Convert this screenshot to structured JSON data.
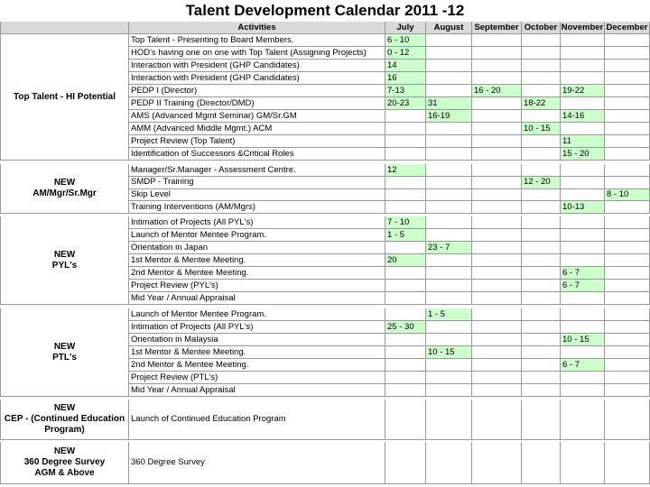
{
  "header": {
    "title": "Talent Development Calendar 2011 -12"
  },
  "table": {
    "columns": [
      "Activities",
      "July",
      "August",
      "September",
      "October",
      "November",
      "December"
    ],
    "groups": [
      {
        "label": [
          "Top Talent - HI Potential"
        ],
        "rows": [
          {
            "activity": "Top Talent - Presenting to Board Members.",
            "cells": [
              "6 - 10",
              null,
              null,
              null,
              null,
              null
            ]
          },
          {
            "activity": "HOD's having one on one with Top Talent (Assigning Projects)",
            "cells": [
              "0 - 12",
              null,
              null,
              null,
              null,
              null
            ]
          },
          {
            "activity": "Interaction with President (GHP Candidates)",
            "cells": [
              "14",
              null,
              null,
              null,
              null,
              null
            ]
          },
          {
            "activity": "Interaction with President (GHP Candidates)",
            "cells": [
              "16",
              null,
              null,
              null,
              null,
              null
            ]
          },
          {
            "activity": "PEDP I (Director)",
            "cells": [
              "7-13",
              null,
              "16 - 20",
              null,
              "19-22",
              null
            ]
          },
          {
            "activity": "PEDP II Training (Director/DMD)",
            "cells": [
              "20-23",
              "31",
              null,
              "18-22",
              null,
              null
            ]
          },
          {
            "activity": "AMS (Advanced Mgmt Seminar) GM/Sr.GM",
            "cells": [
              null,
              "16-19",
              null,
              null,
              "14-16",
              null
            ]
          },
          {
            "activity": "AMM (Advanced Middle Mgmt.) ACM",
            "cells": [
              null,
              null,
              null,
              "10 - 15",
              null,
              null
            ]
          },
          {
            "activity": "Project Review (Top Talent)",
            "cells": [
              null,
              null,
              null,
              null,
              "11",
              null
            ]
          },
          {
            "activity": "Identification of Successors &Critical Roles",
            "cells": [
              null,
              null,
              null,
              null,
              "15 - 20",
              null
            ]
          }
        ]
      },
      {
        "label": [
          "NEW",
          "AM/Mgr/Sr.Mgr"
        ],
        "rows": [
          {
            "activity": "Manager/Sr.Manager - Assessment Centre.",
            "cells": [
              "12",
              null,
              null,
              null,
              null,
              null
            ]
          },
          {
            "activity": "SMDP - Training",
            "cells": [
              null,
              null,
              null,
              "12 - 20",
              null,
              null
            ]
          },
          {
            "activity": "Skip Level",
            "cells": [
              null,
              null,
              null,
              null,
              null,
              "8 - 10"
            ]
          },
          {
            "activity": "Training Interventions (AM/Mgrs)",
            "cells": [
              null,
              null,
              null,
              null,
              "10-13",
              null
            ]
          }
        ]
      },
      {
        "label": [
          "NEW",
          "PYL's"
        ],
        "rows": [
          {
            "activity": "Intimation of Projects (All PYL's)",
            "cells": [
              "7 - 10",
              null,
              null,
              null,
              null,
              null
            ]
          },
          {
            "activity": "Launch of Mentor Mentee Program.",
            "cells": [
              "1 - 5",
              null,
              null,
              null,
              null,
              null
            ]
          },
          {
            "activity": "Orientation in Japan",
            "cells": [
              null,
              "23 - 7",
              null,
              null,
              null,
              null
            ]
          },
          {
            "activity": "1st Mentor & Mentee Meeting.",
            "cells": [
              "20",
              null,
              null,
              null,
              null,
              null
            ]
          },
          {
            "activity": "2nd Mentor & Mentee Meeting.",
            "cells": [
              null,
              null,
              null,
              null,
              "6 - 7",
              null
            ]
          },
          {
            "activity": "Project Review (PYL's)",
            "cells": [
              null,
              null,
              null,
              null,
              "6 - 7",
              null
            ]
          },
          {
            "activity": "Mid Year / Annual Appraisal",
            "cells": [
              null,
              null,
              null,
              null,
              null,
              null
            ]
          }
        ]
      },
      {
        "label": [
          "NEW",
          "PTL's"
        ],
        "rows": [
          {
            "activity": "Launch of Mentor Mentee Program.",
            "cells": [
              null,
              "1 - 5",
              null,
              null,
              null,
              null
            ]
          },
          {
            "activity": "Intimation of Projects (All PYL's)",
            "cells": [
              "25 - 30",
              null,
              null,
              null,
              null,
              null
            ]
          },
          {
            "activity": "Orientation in Malaysia",
            "cells": [
              null,
              null,
              null,
              null,
              "10 - 15",
              null
            ]
          },
          {
            "activity": "1st Mentor & Mentee Meeting.",
            "cells": [
              null,
              "10 - 15",
              null,
              null,
              null,
              null
            ]
          },
          {
            "activity": "2nd Mentor & Mentee Meeting.",
            "cells": [
              null,
              null,
              null,
              null,
              "6 - 7",
              null
            ]
          },
          {
            "activity": "Project Review (PTL's)",
            "cells": [
              null,
              null,
              null,
              null,
              null,
              null
            ]
          },
          {
            "activity": "Mid Year / Annual Appraisal",
            "cells": [
              null,
              null,
              null,
              null,
              null,
              null
            ]
          }
        ]
      },
      {
        "label": [
          "NEW",
          "CEP - (Continued Education",
          "Program)"
        ],
        "rows": [
          {
            "activity": "Launch of Continued Education Program",
            "cells": [
              null,
              null,
              null,
              null,
              null,
              null
            ]
          }
        ]
      },
      {
        "label": [
          "NEW",
          "360 Degree Survey",
          "AGM & Above"
        ],
        "rows": [
          {
            "activity": "360 Degree Survey",
            "cells": [
              null,
              null,
              null,
              null,
              null,
              null
            ]
          }
        ]
      }
    ]
  }
}
